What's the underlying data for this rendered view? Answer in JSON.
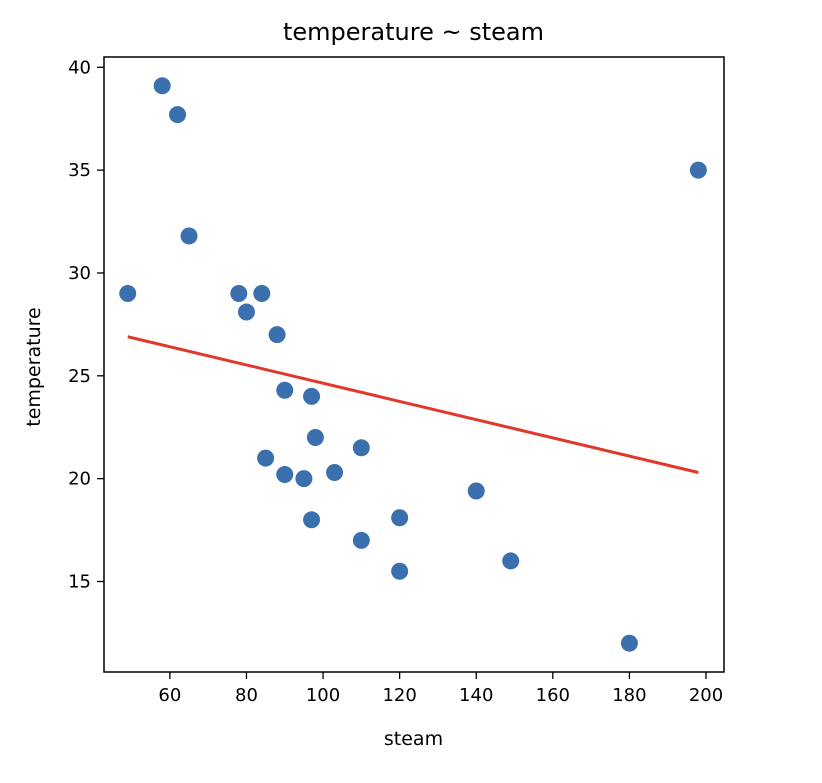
{
  "chart_data": {
    "type": "scatter",
    "title": "temperature ~ steam",
    "xlabel": "steam",
    "ylabel": "temperature",
    "xlim": [
      42.8,
      204.7
    ],
    "ylim": [
      10.6,
      40.5
    ],
    "xticks": [
      60,
      80,
      100,
      120,
      140,
      160,
      180,
      200
    ],
    "yticks": [
      15,
      20,
      25,
      30,
      35,
      40
    ],
    "grid": false,
    "legend": "none",
    "colors": {
      "points": "#3a70ad",
      "fit_line": "#e0382b"
    },
    "points": [
      {
        "x": 58,
        "y": 39.1
      },
      {
        "x": 62,
        "y": 37.7
      },
      {
        "x": 198,
        "y": 35.0
      },
      {
        "x": 65,
        "y": 31.8
      },
      {
        "x": 49,
        "y": 29.0
      },
      {
        "x": 78,
        "y": 29.0
      },
      {
        "x": 84,
        "y": 29.0
      },
      {
        "x": 80,
        "y": 28.1
      },
      {
        "x": 88,
        "y": 27.0
      },
      {
        "x": 90,
        "y": 24.3
      },
      {
        "x": 97,
        "y": 24.0
      },
      {
        "x": 98,
        "y": 22.0
      },
      {
        "x": 110,
        "y": 21.5
      },
      {
        "x": 85,
        "y": 21.0
      },
      {
        "x": 90,
        "y": 20.2
      },
      {
        "x": 95,
        "y": 20.0
      },
      {
        "x": 103,
        "y": 20.3
      },
      {
        "x": 140,
        "y": 19.4
      },
      {
        "x": 97,
        "y": 18.0
      },
      {
        "x": 120,
        "y": 18.1
      },
      {
        "x": 110,
        "y": 17.0
      },
      {
        "x": 120,
        "y": 15.5
      },
      {
        "x": 149,
        "y": 16.0
      },
      {
        "x": 180,
        "y": 12.0
      }
    ],
    "fit_line": {
      "x": [
        49,
        198
      ],
      "y": [
        26.9,
        20.3
      ]
    }
  }
}
